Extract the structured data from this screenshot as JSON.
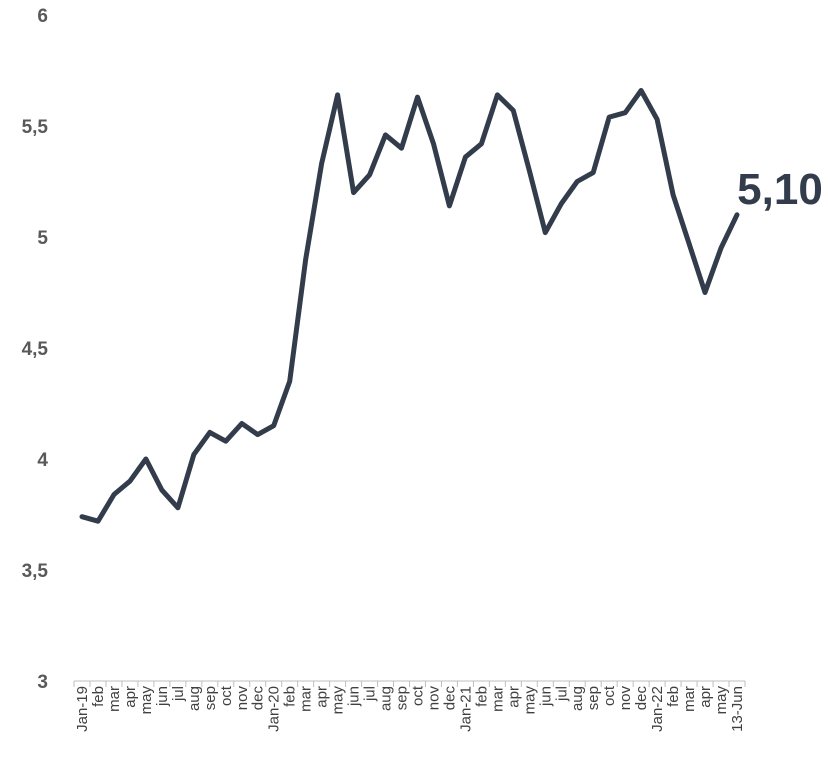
{
  "chart_data": {
    "type": "line",
    "title": "",
    "xlabel": "",
    "ylabel": "",
    "ylim": [
      3,
      6
    ],
    "y_ticks": [
      "3",
      "3,5",
      "4",
      "4,5",
      "5",
      "5,5",
      "6"
    ],
    "y_tick_values": [
      3,
      3.5,
      4,
      4.5,
      5,
      5.5,
      6
    ],
    "grid": false,
    "legend": "none",
    "line_color": "#323C4B",
    "end_label": "5,10",
    "categories": [
      "Jan-19",
      "feb",
      "mar",
      "apr",
      "may",
      "jun",
      "jul",
      "aug",
      "sep",
      "oct",
      "nov",
      "dec",
      "Jan-20",
      "feb",
      "mar",
      "apr",
      "may",
      "jun",
      "jul",
      "aug",
      "sep",
      "oct",
      "nov",
      "dec",
      "Jan-21",
      "feb",
      "mar",
      "apr",
      "may",
      "jun",
      "jul",
      "aug",
      "sep",
      "oct",
      "nov",
      "dec",
      "Jan-22",
      "feb",
      "mar",
      "apr",
      "may",
      "13-Jun"
    ],
    "values": [
      3.74,
      3.72,
      3.84,
      3.9,
      4.0,
      3.86,
      3.78,
      4.02,
      4.12,
      4.08,
      4.16,
      4.11,
      4.15,
      4.35,
      4.9,
      5.33,
      5.64,
      5.2,
      5.28,
      5.46,
      5.4,
      5.63,
      5.42,
      5.14,
      5.36,
      5.42,
      5.64,
      5.57,
      5.3,
      5.02,
      5.15,
      5.25,
      5.29,
      5.54,
      5.56,
      5.66,
      5.53,
      5.19,
      4.97,
      4.75,
      4.95,
      5.1
    ]
  }
}
